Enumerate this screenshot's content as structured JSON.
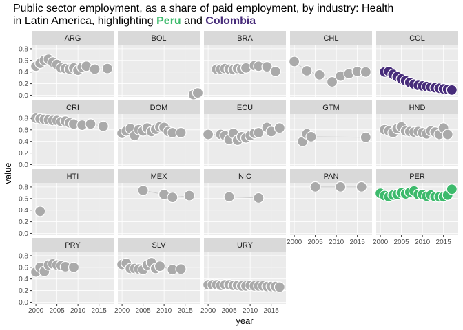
{
  "title": {
    "line1": "Public sector employment, as a share of paid employment, by industry: Health",
    "line2_prefix": "in Latin America, highlighting ",
    "highlight1": "Peru",
    "conjunction": " and ",
    "highlight2": "Colombia"
  },
  "colors": {
    "panel_bg": "#ebebeb",
    "strip_bg": "#d9d9d9",
    "grid": "#ffffff",
    "point_default": "#aaaaaa",
    "point_peru": "#3dba6c",
    "point_colombia": "#472c7a",
    "line": "#cccccc"
  },
  "chart_data": {
    "type": "scatter",
    "facet": "country",
    "xlabel": "year",
    "ylabel": "value",
    "xlim": [
      1999,
      2018.5
    ],
    "ylim": [
      -0.03,
      0.87
    ],
    "x_ticks": [
      2000,
      2005,
      2010,
      2015
    ],
    "y_ticks": [
      0.0,
      0.2,
      0.4,
      0.6,
      0.8
    ],
    "y_tick_labels": [
      "0.0",
      "0.2",
      "0.4",
      "0.6",
      "0.8"
    ],
    "highlight": {
      "PER": "#3dba6c",
      "COL": "#472c7a"
    },
    "panels": [
      {
        "name": "ARG",
        "x": [
          2000,
          2001,
          2002,
          2003,
          2004,
          2005,
          2006,
          2007,
          2008,
          2009,
          2010,
          2011,
          2012,
          2014,
          2017
        ],
        "y": [
          0.5,
          0.55,
          0.6,
          0.62,
          0.57,
          0.53,
          0.47,
          0.46,
          0.45,
          0.47,
          0.43,
          0.48,
          0.5,
          0.45,
          0.46
        ]
      },
      {
        "name": "BOL",
        "x": [
          2017,
          2018
        ],
        "y": [
          0.01,
          0.04
        ]
      },
      {
        "name": "BRA",
        "x": [
          2002,
          2003,
          2004,
          2005,
          2006,
          2007,
          2008,
          2009,
          2011,
          2012,
          2014,
          2016
        ],
        "y": [
          0.45,
          0.45,
          0.46,
          0.45,
          0.44,
          0.46,
          0.45,
          0.47,
          0.51,
          0.5,
          0.49,
          0.41
        ]
      },
      {
        "name": "CHL",
        "x": [
          2000,
          2003,
          2006,
          2009,
          2011,
          2013,
          2015,
          2017
        ],
        "y": [
          0.58,
          0.42,
          0.35,
          0.23,
          0.33,
          0.37,
          0.41,
          0.4
        ]
      },
      {
        "name": "COL",
        "x": [
          2001,
          2002,
          2003,
          2004,
          2005,
          2006,
          2007,
          2008,
          2009,
          2010,
          2011,
          2012,
          2013,
          2014,
          2015,
          2016,
          2017
        ],
        "y": [
          0.4,
          0.41,
          0.36,
          0.32,
          0.28,
          0.25,
          0.22,
          0.19,
          0.17,
          0.16,
          0.15,
          0.14,
          0.13,
          0.12,
          0.11,
          0.1,
          0.09
        ]
      },
      {
        "name": "CRI",
        "x": [
          2000,
          2001,
          2002,
          2003,
          2004,
          2005,
          2006,
          2007,
          2008,
          2009,
          2011,
          2013,
          2016
        ],
        "y": [
          0.8,
          0.79,
          0.78,
          0.77,
          0.76,
          0.76,
          0.74,
          0.75,
          0.72,
          0.7,
          0.68,
          0.7,
          0.66
        ]
      },
      {
        "name": "DOM",
        "x": [
          2000,
          2001,
          2002,
          2003,
          2004,
          2005,
          2006,
          2007,
          2008,
          2009,
          2010,
          2011,
          2012,
          2014
        ],
        "y": [
          0.54,
          0.58,
          0.62,
          0.5,
          0.6,
          0.58,
          0.63,
          0.57,
          0.61,
          0.65,
          0.64,
          0.57,
          0.55,
          0.55
        ]
      },
      {
        "name": "ECU",
        "x": [
          2000,
          2003,
          2004,
          2005,
          2006,
          2007,
          2008,
          2009,
          2010,
          2011,
          2012,
          2014,
          2015,
          2017
        ],
        "y": [
          0.52,
          0.52,
          0.5,
          0.43,
          0.54,
          0.42,
          0.48,
          0.46,
          0.5,
          0.54,
          0.55,
          0.64,
          0.57,
          0.63
        ]
      },
      {
        "name": "GTM",
        "x": [
          2002,
          2003,
          2004,
          2017
        ],
        "y": [
          0.4,
          0.53,
          0.48,
          0.47
        ]
      },
      {
        "name": "HND",
        "x": [
          2001,
          2002,
          2003,
          2004,
          2005,
          2006,
          2007,
          2008,
          2009,
          2010,
          2011,
          2012,
          2013,
          2014,
          2015,
          2016
        ],
        "y": [
          0.6,
          0.58,
          0.55,
          0.62,
          0.65,
          0.58,
          0.57,
          0.56,
          0.57,
          0.55,
          0.53,
          0.58,
          0.56,
          0.52,
          0.63,
          0.52
        ]
      },
      {
        "name": "HTI",
        "x": [
          2001
        ],
        "y": [
          0.38
        ]
      },
      {
        "name": "MEX",
        "x": [
          2005,
          2010,
          2012,
          2016
        ],
        "y": [
          0.74,
          0.67,
          0.62,
          0.65
        ]
      },
      {
        "name": "NIC",
        "x": [
          2005,
          2012
        ],
        "y": [
          0.63,
          0.61
        ]
      },
      {
        "name": "PAN",
        "x": [
          2005,
          2011,
          2016
        ],
        "y": [
          0.8,
          0.8,
          0.8
        ]
      },
      {
        "name": "PER",
        "x": [
          2000,
          2001,
          2002,
          2003,
          2004,
          2005,
          2006,
          2007,
          2008,
          2009,
          2010,
          2011,
          2012,
          2013,
          2014,
          2015,
          2016,
          2017
        ],
        "y": [
          0.69,
          0.65,
          0.63,
          0.66,
          0.67,
          0.7,
          0.68,
          0.71,
          0.73,
          0.67,
          0.67,
          0.64,
          0.66,
          0.63,
          0.63,
          0.63,
          0.66,
          0.76
        ]
      },
      {
        "name": "PRY",
        "x": [
          2000,
          2001,
          2002,
          2003,
          2004,
          2005,
          2006,
          2007,
          2009
        ],
        "y": [
          0.52,
          0.6,
          0.53,
          0.64,
          0.66,
          0.64,
          0.63,
          0.61,
          0.6
        ]
      },
      {
        "name": "SLV",
        "x": [
          2000,
          2001,
          2002,
          2003,
          2004,
          2005,
          2006,
          2007,
          2008,
          2009,
          2012,
          2014
        ],
        "y": [
          0.65,
          0.67,
          0.58,
          0.58,
          0.57,
          0.56,
          0.64,
          0.68,
          0.58,
          0.62,
          0.56,
          0.57
        ]
      },
      {
        "name": "URY",
        "x": [
          2000,
          2001,
          2002,
          2003,
          2004,
          2005,
          2006,
          2007,
          2008,
          2009,
          2010,
          2011,
          2012,
          2013,
          2014,
          2015,
          2016,
          2017
        ],
        "y": [
          0.3,
          0.3,
          0.3,
          0.29,
          0.3,
          0.3,
          0.29,
          0.29,
          0.28,
          0.28,
          0.29,
          0.28,
          0.28,
          0.28,
          0.27,
          0.27,
          0.27,
          0.26
        ]
      }
    ]
  }
}
